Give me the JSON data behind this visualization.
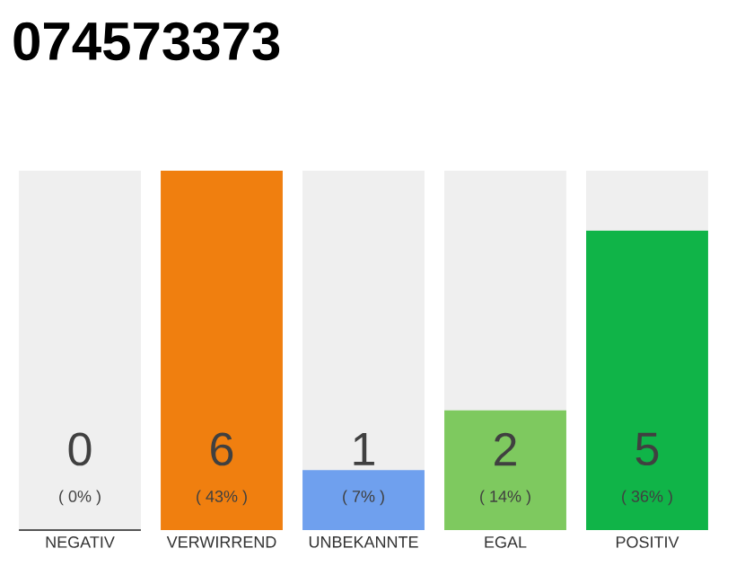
{
  "chart_data": {
    "type": "bar",
    "title": "074573373",
    "categories": [
      "NEGATIV",
      "VERWIRREND",
      "UNBEKANNTE",
      "EGAL",
      "POSITIV"
    ],
    "tick_labels": "x",
    "data_labels": true,
    "bands": [
      {
        "axis": "y",
        "from": 0,
        "to": 6,
        "color": "#efefef"
      }
    ],
    "annotations": [
      "( 0% )",
      "( 43% )",
      "( 7% )",
      "( 14% )",
      "( 36% )"
    ],
    "series": [
      {
        "values": [
          0,
          6,
          1,
          2,
          5
        ],
        "colors": [
          "#555555",
          "#f07f0f",
          "#6fa0ee",
          "#7ec95f",
          "#10b448"
        ]
      }
    ]
  }
}
